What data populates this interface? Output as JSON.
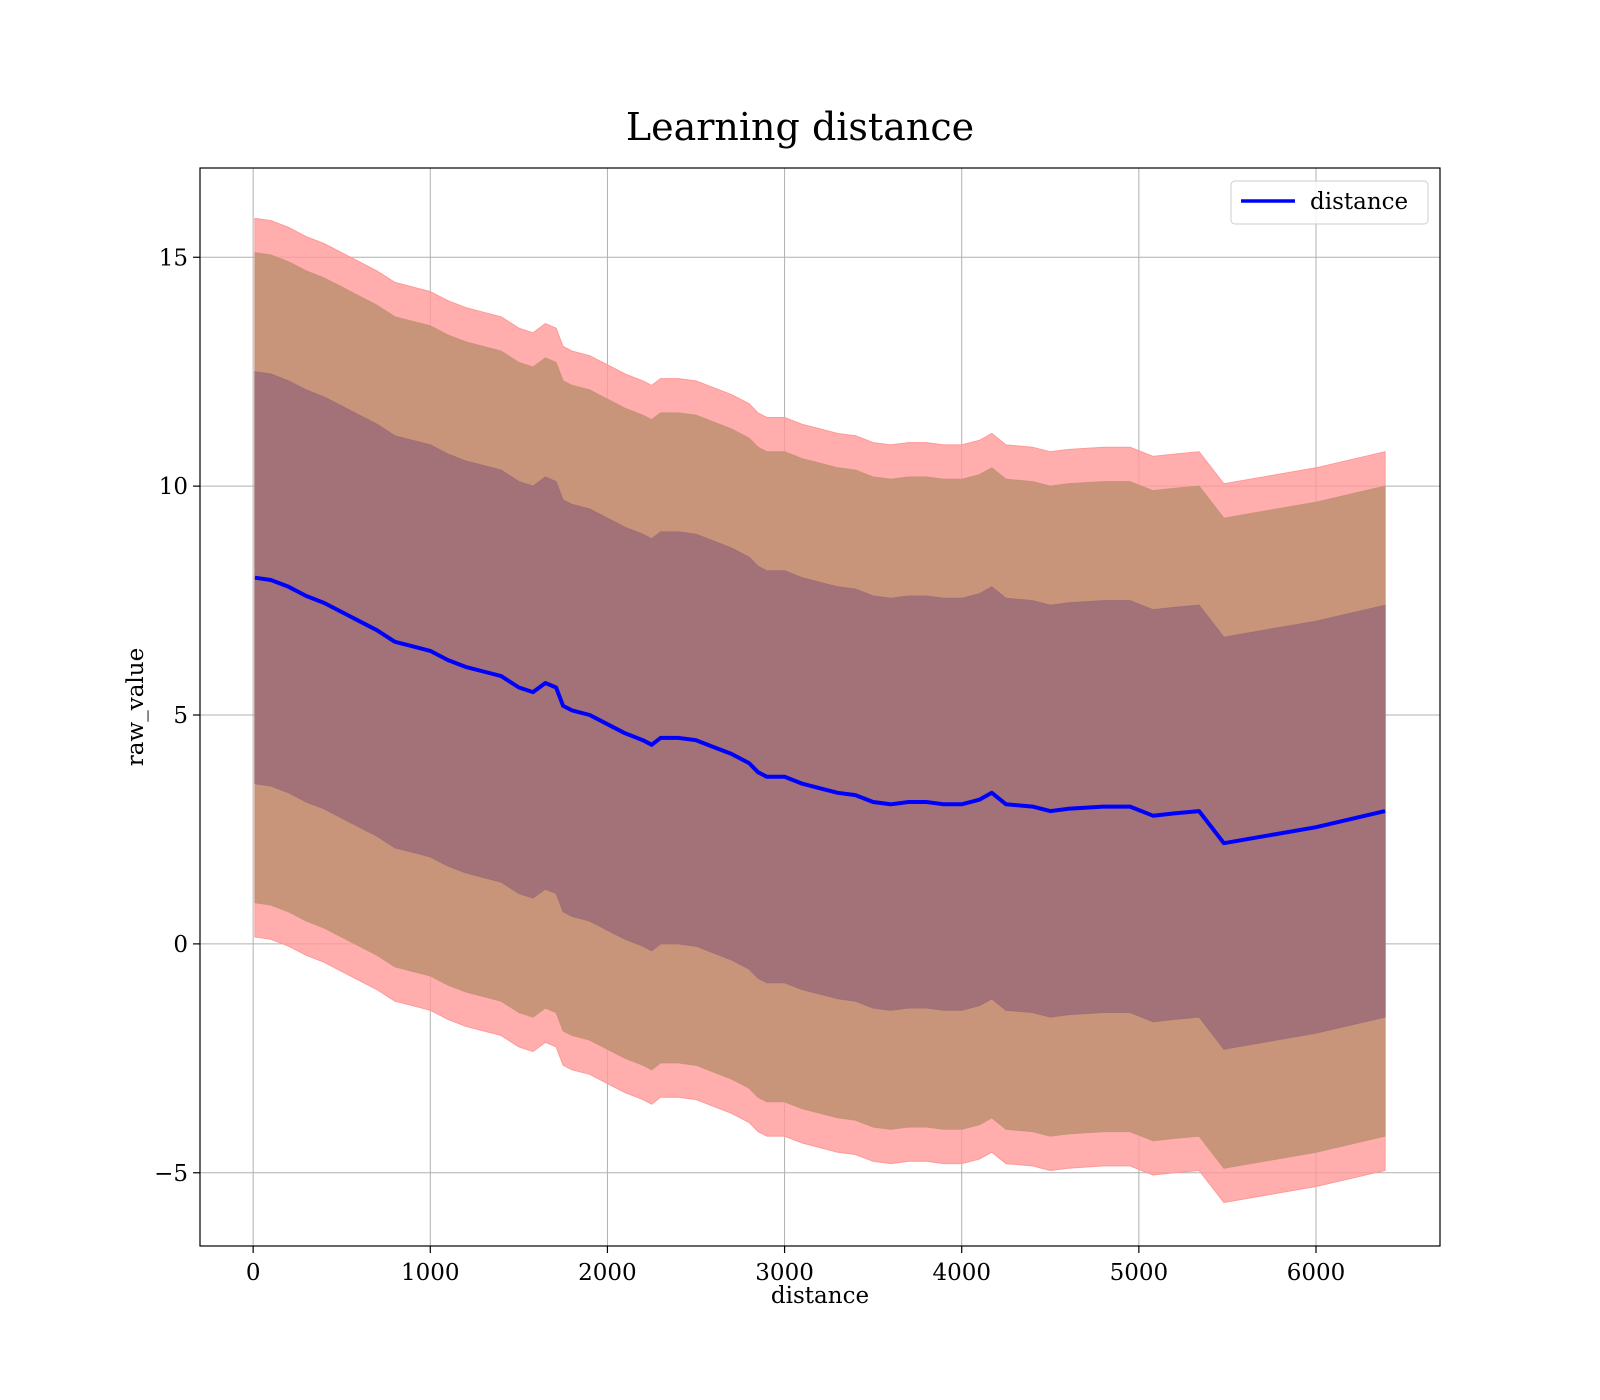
{
  "chart_data": {
    "type": "area",
    "title": "Learning distance",
    "xlabel": "distance",
    "ylabel": "raw_value",
    "xlim": [
      -300,
      6700
    ],
    "ylim": [
      -6.6,
      16.95
    ],
    "xticks": [
      0,
      1000,
      2000,
      3000,
      4000,
      5000,
      6000
    ],
    "yticks": [
      -5,
      0,
      5,
      10,
      15
    ],
    "grid": true,
    "legend_position": "top-right",
    "colors": {
      "line": "#0000ff",
      "band_outer": "#ff9999",
      "band_middle": "#c69477",
      "band_inner": "#a07078"
    },
    "x": [
      10,
      100,
      200,
      300,
      400,
      500,
      600,
      700,
      800,
      900,
      1000,
      1100,
      1200,
      1300,
      1400,
      1500,
      1580,
      1650,
      1710,
      1750,
      1800,
      1900,
      2000,
      2100,
      2200,
      2250,
      2300,
      2400,
      2500,
      2600,
      2700,
      2800,
      2850,
      2900,
      3000,
      3100,
      3200,
      3300,
      3400,
      3500,
      3600,
      3700,
      3800,
      3900,
      4000,
      4100,
      4170,
      4250,
      4400,
      4500,
      4600,
      4800,
      4950,
      5080,
      5200,
      5340,
      5480,
      6000,
      6390
    ],
    "series": [
      {
        "name": "distance",
        "values": [
          8.0,
          7.95,
          7.8,
          7.6,
          7.45,
          7.25,
          7.05,
          6.85,
          6.6,
          6.5,
          6.4,
          6.2,
          6.05,
          5.95,
          5.85,
          5.6,
          5.5,
          5.7,
          5.6,
          5.2,
          5.1,
          5.0,
          4.8,
          4.6,
          4.45,
          4.35,
          4.5,
          4.5,
          4.45,
          4.3,
          4.15,
          3.95,
          3.75,
          3.65,
          3.65,
          3.5,
          3.4,
          3.3,
          3.25,
          3.1,
          3.05,
          3.1,
          3.1,
          3.05,
          3.05,
          3.15,
          3.3,
          3.05,
          3.0,
          2.9,
          2.95,
          3.0,
          3.0,
          2.8,
          2.85,
          2.9,
          2.2,
          2.55,
          2.9
        ]
      }
    ],
    "bands": [
      {
        "std": 7.85
      },
      {
        "std": 7.1
      },
      {
        "std": 4.5
      }
    ]
  }
}
